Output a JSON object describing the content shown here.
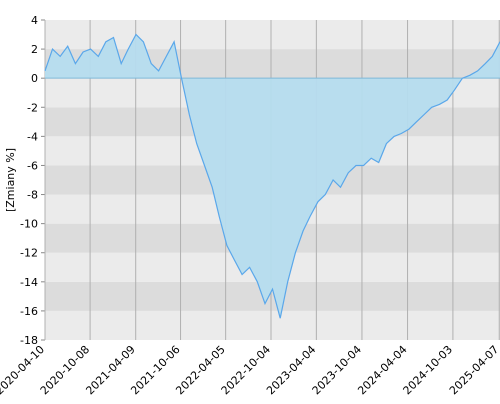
{
  "chart_data": {
    "type": "area",
    "y_label": "[Zmiany %]",
    "x": [
      "2020-04-10",
      "2020-05-10",
      "2020-06-10",
      "2020-07-10",
      "2020-08-10",
      "2020-09-10",
      "2020-10-10",
      "2020-11-10",
      "2020-12-10",
      "2021-01-10",
      "2021-02-10",
      "2021-03-10",
      "2021-04-10",
      "2021-05-10",
      "2021-06-10",
      "2021-07-10",
      "2021-08-10",
      "2021-09-10",
      "2021-10-10",
      "2021-11-10",
      "2021-12-10",
      "2022-01-10",
      "2022-02-10",
      "2022-03-10",
      "2022-04-10",
      "2022-05-10",
      "2022-06-10",
      "2022-07-10",
      "2022-08-10",
      "2022-09-10",
      "2022-10-10",
      "2022-11-10",
      "2022-12-10",
      "2023-01-10",
      "2023-02-10",
      "2023-03-10",
      "2023-04-10",
      "2023-05-10",
      "2023-06-10",
      "2023-07-10",
      "2023-08-10",
      "2023-09-10",
      "2023-10-10",
      "2023-11-10",
      "2023-12-10",
      "2024-01-10",
      "2024-02-10",
      "2024-03-10",
      "2024-04-10",
      "2024-05-10",
      "2024-06-10",
      "2024-07-10",
      "2024-08-10",
      "2024-09-10",
      "2024-10-10",
      "2024-11-10",
      "2024-12-10",
      "2025-01-10",
      "2025-02-10",
      "2025-03-10",
      "2025-04-10"
    ],
    "values": [
      0.5,
      2.0,
      1.5,
      2.2,
      1.0,
      1.8,
      2.0,
      1.5,
      2.5,
      2.8,
      1.0,
      2.0,
      3.0,
      2.5,
      1.0,
      0.5,
      1.5,
      2.5,
      0.0,
      -2.5,
      -4.5,
      -6.0,
      -7.5,
      -9.5,
      -11.5,
      -12.5,
      -13.5,
      -13.0,
      -14.0,
      -15.5,
      -14.5,
      -16.5,
      -14.0,
      -12.0,
      -10.5,
      -9.5,
      -8.5,
      -8.0,
      -7.0,
      -7.5,
      -6.5,
      -6.0,
      -6.0,
      -5.5,
      -5.8,
      -4.5,
      -4.0,
      -3.8,
      -3.5,
      -3.0,
      -2.5,
      -2.0,
      -1.8,
      -1.5,
      -0.8,
      0.0,
      0.2,
      0.5,
      1.0,
      1.5,
      2.5
    ],
    "color": "#5aa7ea",
    "fill_color": "#b5dcee",
    "xlim": [
      "2020-04-10",
      "2025-04-10"
    ],
    "xticks": [
      "2020-04-10",
      "2020-10-08",
      "2021-04-09",
      "2021-10-06",
      "2022-04-05",
      "2022-10-04",
      "2023-04-04",
      "2023-10-04",
      "2024-04-04",
      "2024-10-03",
      "2025-04-07"
    ],
    "ylim": [
      -18,
      4
    ],
    "yticks": [
      -18,
      -16,
      -14,
      -12,
      -10,
      -8,
      -6,
      -4,
      -2,
      0,
      2,
      4
    ],
    "grid": true
  }
}
